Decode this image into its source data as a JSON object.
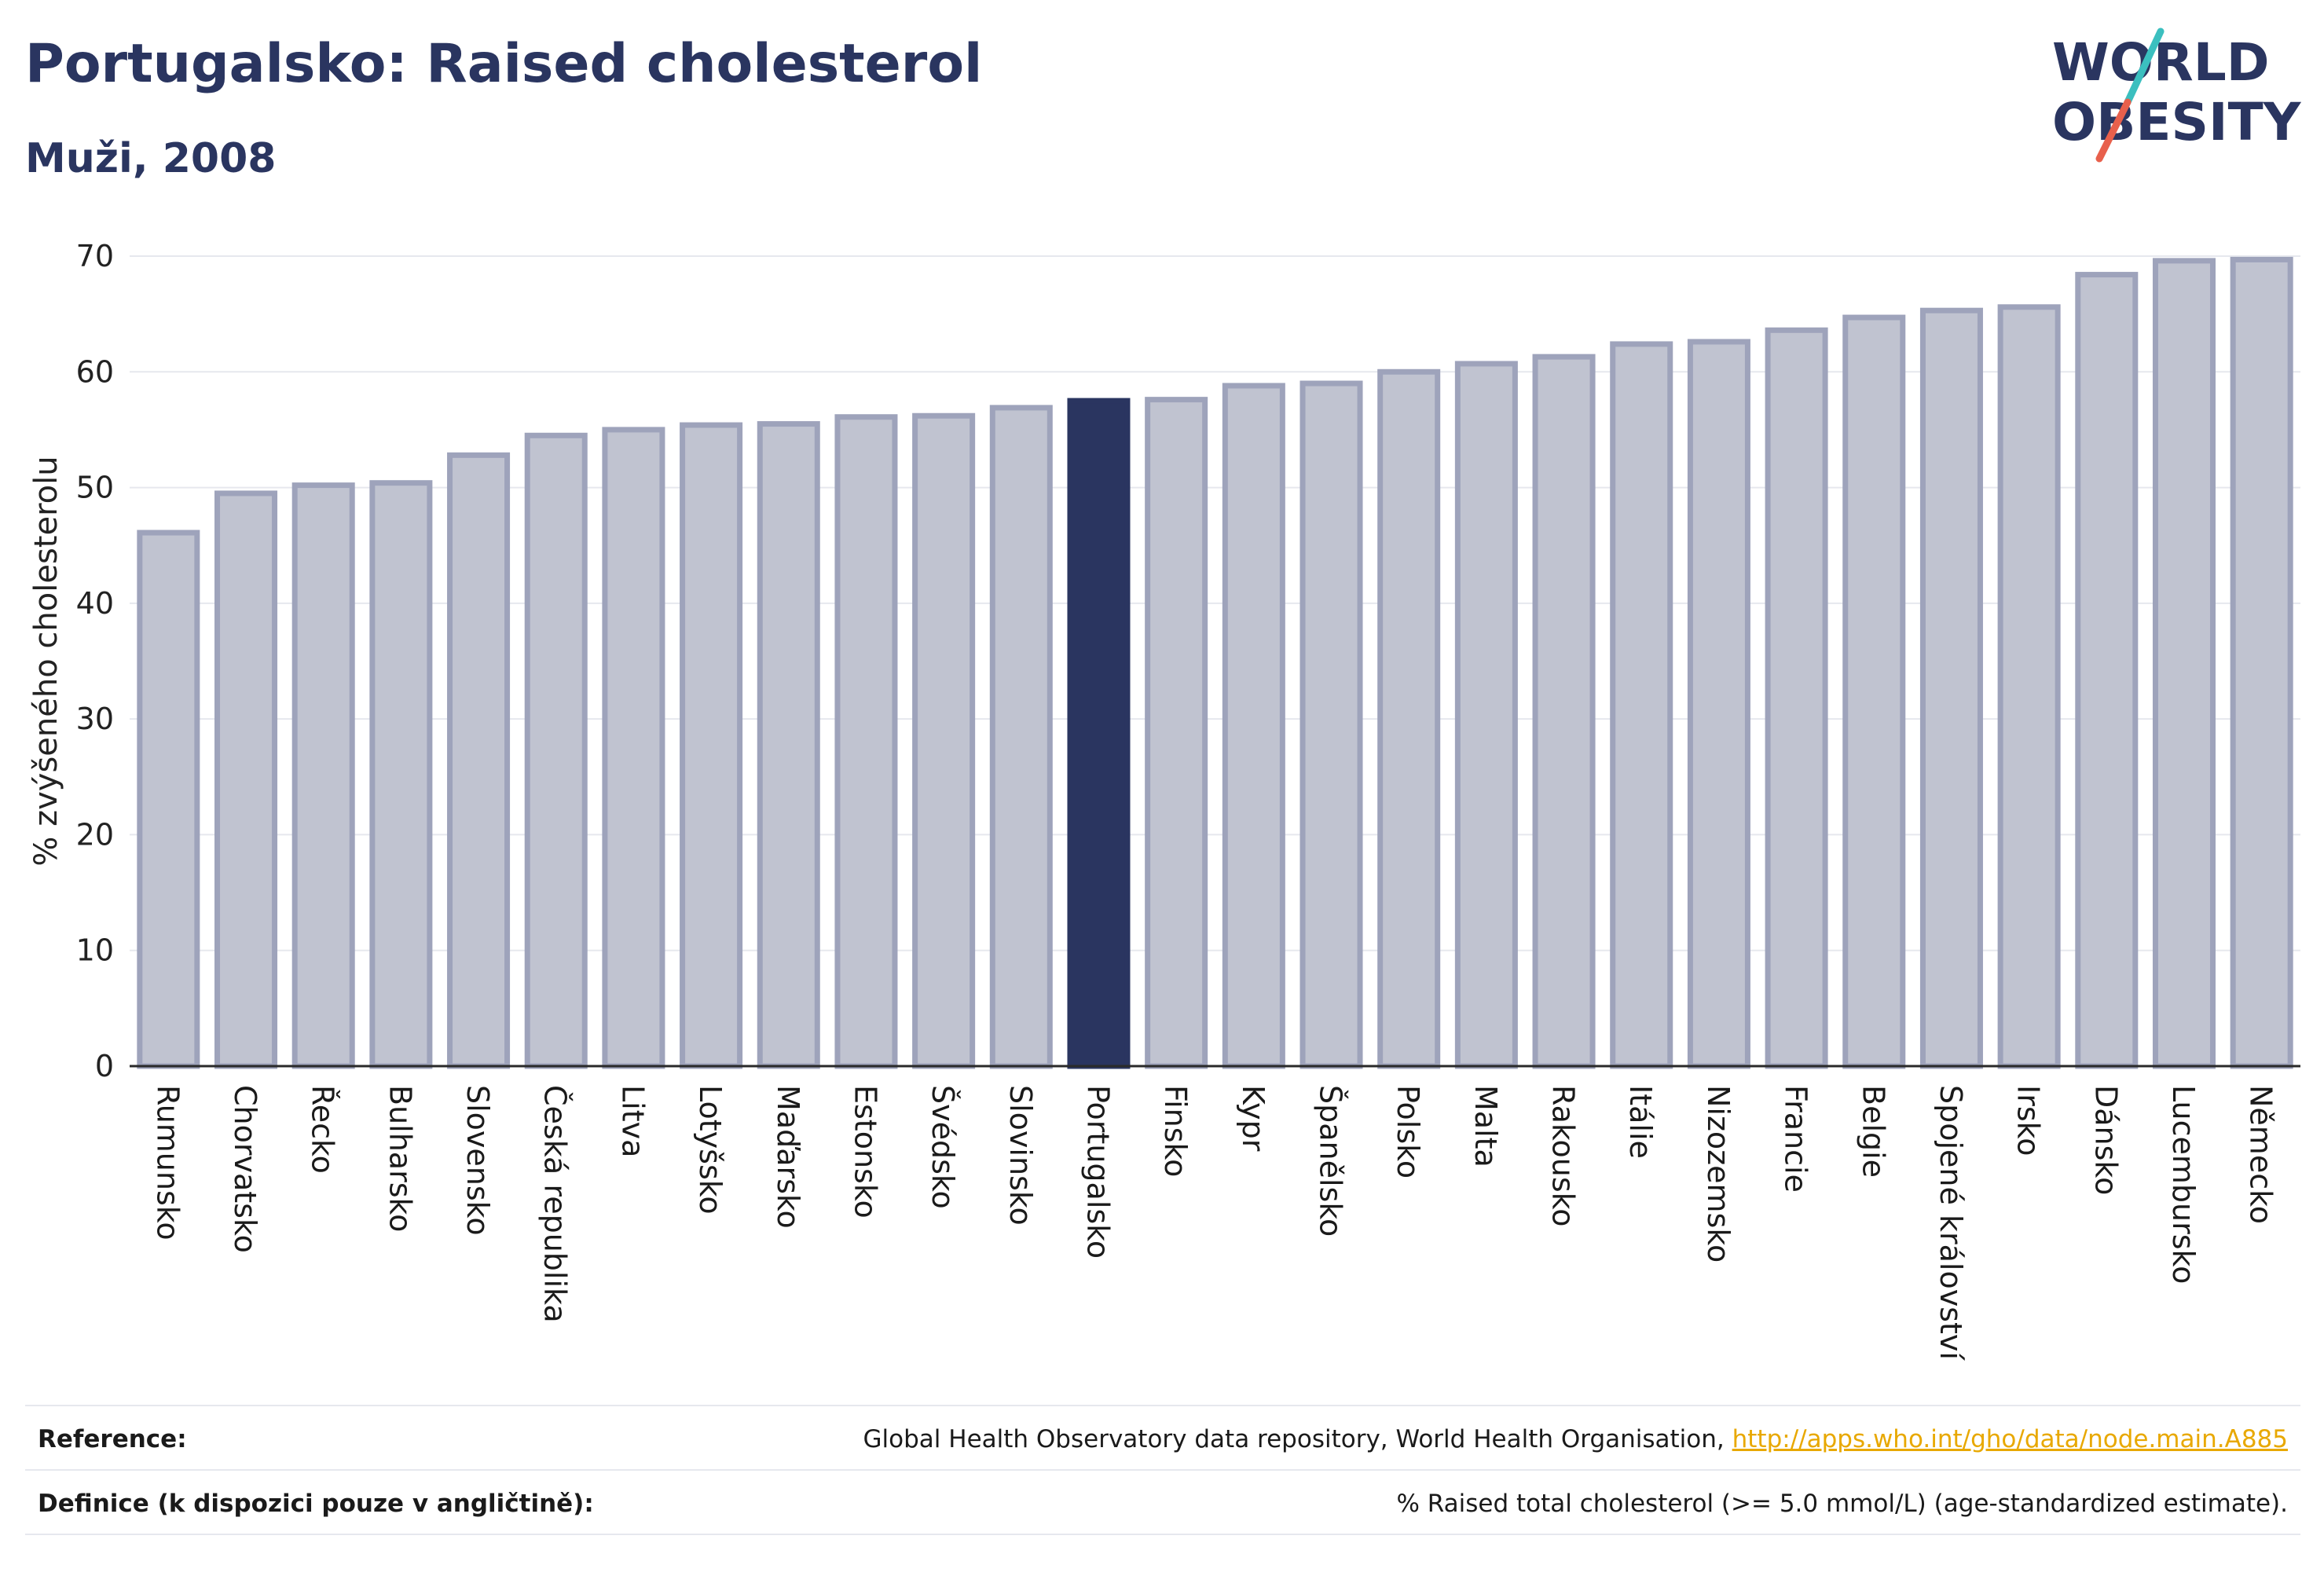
{
  "header": {
    "title": "Portugalsko: Raised cholesterol",
    "subtitle": "Muži, 2008"
  },
  "logo": {
    "line1": "WORLD",
    "line2": "OBESITY",
    "colors": {
      "text": "#2a3560",
      "slash_teal": "#3bbfbf",
      "slash_red": "#e8604c"
    }
  },
  "chart_data": {
    "type": "bar",
    "title": "",
    "xlabel": "",
    "ylabel": "% zvýšeného cholesterolu",
    "ylim": [
      0,
      70
    ],
    "yticks": [
      0,
      10,
      20,
      30,
      40,
      50,
      60,
      70
    ],
    "grid": true,
    "highlight": "Portugalsko",
    "colors": {
      "bar": "#c0c3d0",
      "bar_edge": "#9ea3bb",
      "highlight": "#2a3560",
      "grid": "#e6e8ee",
      "axis": "#2a2a2a"
    },
    "categories": [
      "Rumunsko",
      "Chorvatsko",
      "Řecko",
      "Bulharsko",
      "Slovensko",
      "Česká republika",
      "Litva",
      "Lotyšsko",
      "Maďarsko",
      "Estonsko",
      "Švédsko",
      "Slovinsko",
      "Portugalsko",
      "Finsko",
      "Kypr",
      "Španělsko",
      "Polsko",
      "Malta",
      "Rakousko",
      "Itálie",
      "Nizozemsko",
      "Francie",
      "Belgie",
      "Spojené království",
      "Irsko",
      "Dánsko",
      "Lucembursko",
      "Německo"
    ],
    "values": [
      46.1,
      49.5,
      50.2,
      50.4,
      52.8,
      54.5,
      55.0,
      55.4,
      55.5,
      56.1,
      56.2,
      56.9,
      57.5,
      57.6,
      58.8,
      59.0,
      60.0,
      60.7,
      61.3,
      62.4,
      62.6,
      63.6,
      64.7,
      65.3,
      65.6,
      68.4,
      69.6,
      69.7
    ]
  },
  "footer": {
    "reference_label": "Reference:",
    "reference_text": "Global Health Observatory data repository, World Health Organisation, ",
    "reference_link": "http://apps.who.int/gho/data/node.main.A885",
    "definition_label": "Definice (k dispozici pouze v angličtině):",
    "definition_text": "% Raised total cholesterol (>= 5.0 mmol/L) (age-standardized estimate)."
  }
}
